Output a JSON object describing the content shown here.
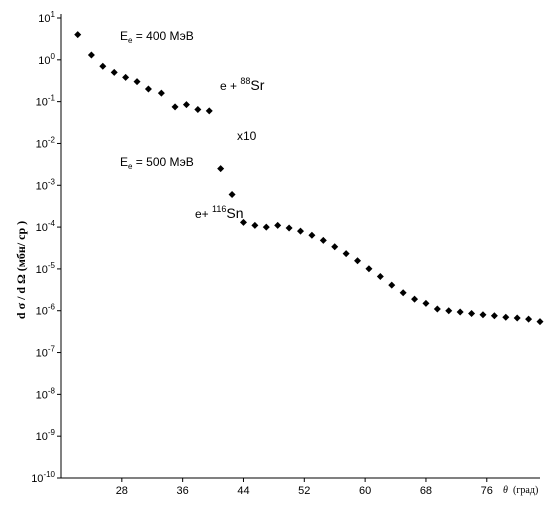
{
  "chart_data": {
    "type": "scatter",
    "xlabel": {
      "symbol": "θ",
      "unit": "(град)"
    },
    "ylabel": "d σ / d Ω   (мбн/ ср )",
    "x_ticks": [
      28,
      36,
      44,
      52,
      60,
      68,
      76
    ],
    "y_ticks": [
      {
        "base": "10",
        "exp": "1"
      },
      {
        "base": "10",
        "exp": "0"
      },
      {
        "base": "10",
        "exp": "-1"
      },
      {
        "base": "10",
        "exp": "-2"
      },
      {
        "base": "10",
        "exp": "-3"
      },
      {
        "base": "10",
        "exp": "-4"
      },
      {
        "base": "10",
        "exp": "-5"
      },
      {
        "base": "10",
        "exp": "-6"
      },
      {
        "base": "10",
        "exp": "-7"
      },
      {
        "base": "10",
        "exp": "-8"
      },
      {
        "base": "10",
        "exp": "-9"
      },
      {
        "base": "10",
        "exp": "-10"
      }
    ],
    "xlim": [
      20,
      83
    ],
    "ylim_log10": [
      -10,
      1
    ],
    "y_scale": "log",
    "grid": false,
    "annotations": {
      "sr_energy": {
        "prefix": "E",
        "sub": "e",
        "rest": " = 400 МэВ"
      },
      "sr_reaction": {
        "prefix": "e + ",
        "sup": "88",
        "rest": "Sr"
      },
      "scale_factor": "x10",
      "sn_energy": {
        "prefix": "E",
        "sub": "e",
        "rest": " = 500 МэВ"
      },
      "sn_reaction": {
        "prefix": "e+ ",
        "sup": "116",
        "rest": "Sn"
      }
    },
    "series": [
      {
        "marker": "diamond",
        "color": "#000000",
        "points": [
          [
            22.2,
            4.0
          ],
          [
            24.0,
            1.3
          ],
          [
            25.5,
            0.7
          ],
          [
            27.0,
            0.5
          ],
          [
            28.5,
            0.38
          ],
          [
            30.0,
            0.3
          ],
          [
            31.5,
            0.2
          ],
          [
            33.2,
            0.16
          ],
          [
            35.0,
            0.075
          ],
          [
            36.5,
            0.085
          ],
          [
            38.0,
            0.065
          ],
          [
            39.5,
            0.06
          ],
          [
            41.0,
            0.0025
          ],
          [
            42.5,
            0.0006
          ],
          [
            44.0,
            0.00013
          ],
          [
            45.5,
            0.00011
          ],
          [
            47.0,
            0.0001
          ],
          [
            48.5,
            0.00011
          ],
          [
            50.0,
            9.5e-05
          ],
          [
            51.5,
            8e-05
          ],
          [
            53.0,
            6.4e-05
          ],
          [
            54.5,
            4.8e-05
          ],
          [
            56.0,
            3.38e-05
          ],
          [
            57.5,
            2.32e-05
          ],
          [
            59.0,
            1.57e-05
          ],
          [
            60.5,
            1.01e-05
          ],
          [
            62.0,
            6.6e-06
          ],
          [
            63.5,
            4.1e-06
          ],
          [
            65.0,
            2.7e-06
          ],
          [
            66.5,
            1.9e-06
          ],
          [
            68.0,
            1.5e-06
          ],
          [
            69.5,
            1.1e-06
          ],
          [
            71.0,
            1e-06
          ],
          [
            72.5,
            9.3e-07
          ],
          [
            74.0,
            8.6e-07
          ],
          [
            75.5,
            8e-07
          ],
          [
            77.0,
            7.6e-07
          ],
          [
            78.5,
            7e-07
          ],
          [
            80.0,
            6.7e-07
          ],
          [
            81.5,
            6.3e-07
          ],
          [
            83.0,
            5.5e-07
          ]
        ]
      }
    ]
  }
}
